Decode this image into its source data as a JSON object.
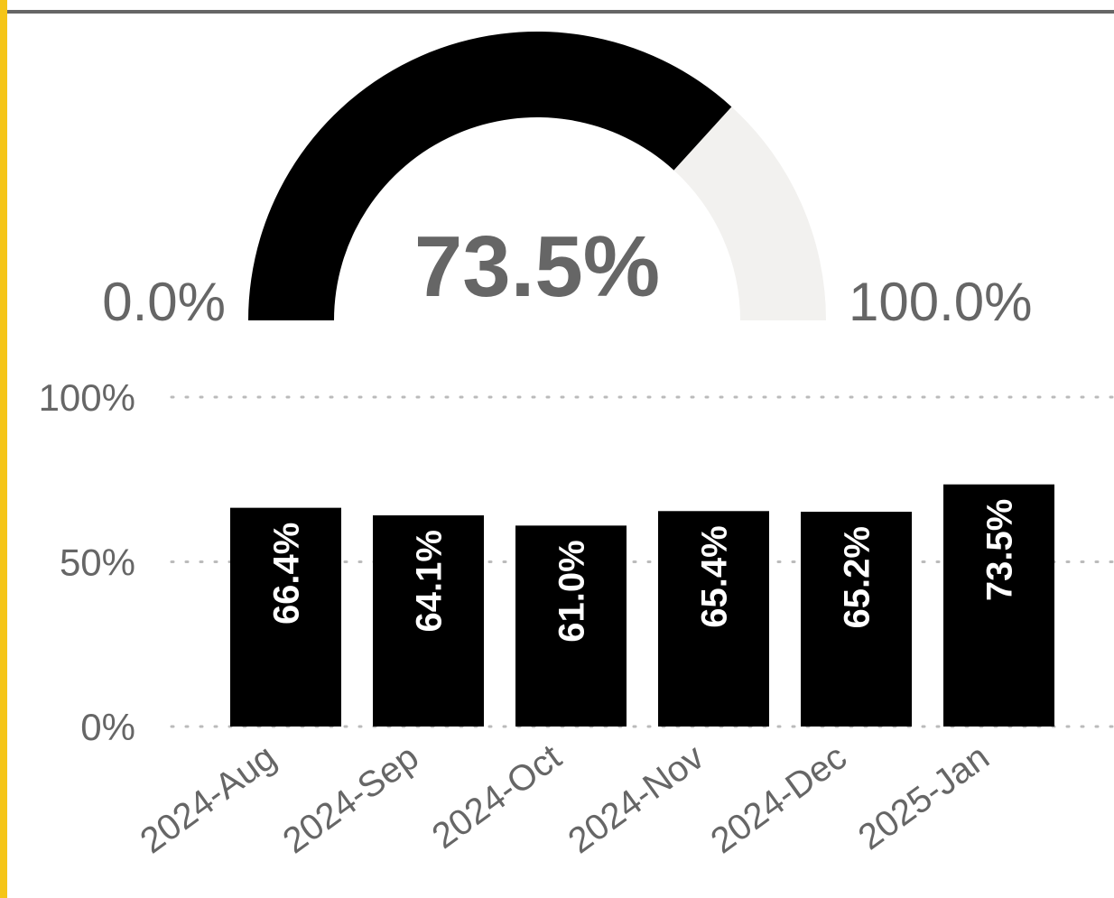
{
  "chart_data": [
    {
      "type": "gauge",
      "value": 73.5,
      "value_label": "73.5%",
      "min": {
        "value": 0,
        "label": "0.0%"
      },
      "max": {
        "value": 100,
        "label": "100.0%"
      },
      "color": "#000000",
      "track_color": "#f2f1ef"
    },
    {
      "type": "bar",
      "categories": [
        "2024-Aug",
        "2024-Sep",
        "2024-Oct",
        "2024-Nov",
        "2024-Dec",
        "2025-Jan"
      ],
      "values": [
        66.4,
        64.1,
        61.0,
        65.4,
        65.2,
        73.5
      ],
      "value_labels": [
        "66.4%",
        "64.1%",
        "61.0%",
        "65.4%",
        "65.2%",
        "73.5%"
      ],
      "color": "#000000",
      "ylim": [
        0,
        100
      ],
      "yticks": [
        {
          "value": 0,
          "label": "0%"
        },
        {
          "value": 50,
          "label": "50%"
        },
        {
          "value": 100,
          "label": "100%"
        }
      ],
      "grid": true
    }
  ]
}
